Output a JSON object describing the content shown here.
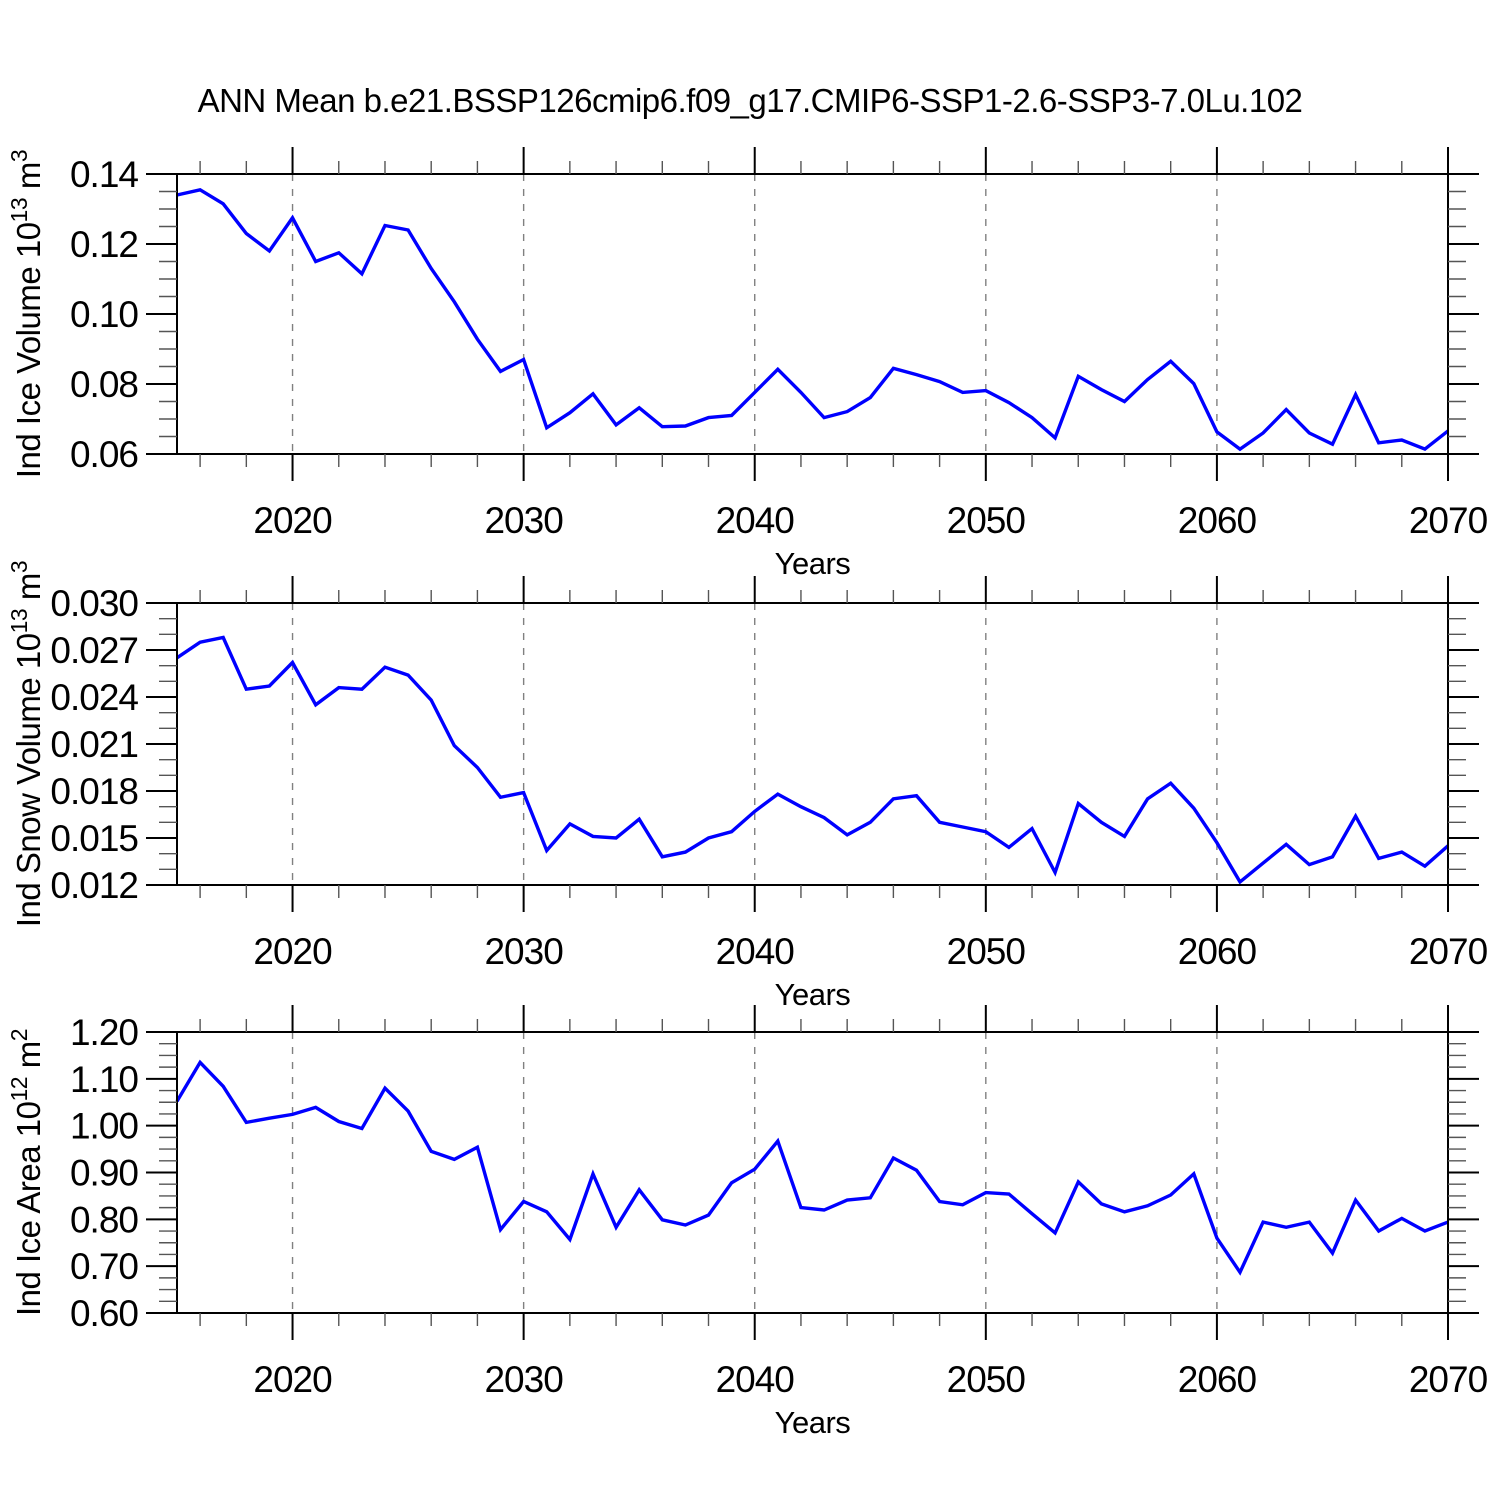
{
  "title": "ANN Mean b.e21.BSSP126cmip6.f09_g17.CMIP6-SSP1-2.6-SSP3-7.0Lu.102",
  "colors": {
    "line": "#0000ff",
    "grid": "#808080",
    "axis": "#000000",
    "background": "#ffffff"
  },
  "x_axis": {
    "label": "Years",
    "min": 2015,
    "max": 2070,
    "major_ticks": [
      2020,
      2030,
      2040,
      2050,
      2060,
      2070
    ],
    "tick_labels": [
      "2020",
      "2030",
      "2040",
      "2050",
      "2060",
      "2070"
    ],
    "minor_step": 2,
    "gridlines": [
      2020,
      2030,
      2040,
      2050,
      2060
    ],
    "grid_style": "vertical-dashed"
  },
  "chart_data": [
    {
      "type": "line",
      "name": "ice-volume",
      "ylabel": {
        "text": "Ind Ice Volume",
        "base": "10",
        "exponent": "13",
        "unit": "m",
        "unit_exponent": "3"
      },
      "xlabel": "Years",
      "x": {
        "start": 2015,
        "end": 2070,
        "step": 1
      },
      "ylim": [
        0.06,
        0.14
      ],
      "ytick_values": [
        0.06,
        0.08,
        0.1,
        0.12,
        0.14
      ],
      "ytick_labels": [
        "0.06",
        "0.08",
        "0.10",
        "0.12",
        "0.14"
      ],
      "yminor_step": 0.005,
      "values": [
        0.134,
        0.1355,
        0.1315,
        0.123,
        0.118,
        0.1275,
        0.115,
        0.1175,
        0.1115,
        0.1253,
        0.124,
        0.113,
        0.1035,
        0.0928,
        0.0836,
        0.087,
        0.0675,
        0.0718,
        0.0772,
        0.0683,
        0.0732,
        0.0678,
        0.068,
        0.0704,
        0.071,
        0.0776,
        0.0842,
        0.0776,
        0.0704,
        0.0721,
        0.0761,
        0.0845,
        0.0827,
        0.0807,
        0.0776,
        0.0781,
        0.0747,
        0.0704,
        0.0646,
        0.0822,
        0.0784,
        0.075,
        0.0813,
        0.0865,
        0.0801,
        0.0663,
        0.0614,
        0.066,
        0.0727,
        0.066,
        0.0628,
        0.077,
        0.0632,
        0.064,
        0.0614,
        0.0666
      ]
    },
    {
      "type": "line",
      "name": "snow-volume",
      "ylabel": {
        "text": "Ind Snow Volume",
        "base": "10",
        "exponent": "13",
        "unit": "m",
        "unit_exponent": "3"
      },
      "xlabel": "Years",
      "x": {
        "start": 2015,
        "end": 2070,
        "step": 1
      },
      "ylim": [
        0.012,
        0.03
      ],
      "ytick_values": [
        0.012,
        0.015,
        0.018,
        0.021,
        0.024,
        0.027,
        0.03
      ],
      "ytick_labels": [
        "0.012",
        "0.015",
        "0.018",
        "0.021",
        "0.024",
        "0.027",
        "0.030"
      ],
      "yminor_step": 0.001,
      "values": [
        0.0265,
        0.0275,
        0.0278,
        0.0245,
        0.0247,
        0.0262,
        0.0235,
        0.0246,
        0.0245,
        0.0259,
        0.0254,
        0.0238,
        0.0209,
        0.0195,
        0.0176,
        0.0179,
        0.0142,
        0.0159,
        0.0151,
        0.015,
        0.0162,
        0.0138,
        0.0141,
        0.015,
        0.0154,
        0.0167,
        0.0178,
        0.017,
        0.0163,
        0.0152,
        0.016,
        0.0175,
        0.0177,
        0.016,
        0.0157,
        0.0154,
        0.0144,
        0.0156,
        0.0128,
        0.0172,
        0.016,
        0.0151,
        0.0175,
        0.0185,
        0.0169,
        0.0147,
        0.0122,
        0.0134,
        0.0146,
        0.0133,
        0.0138,
        0.0164,
        0.0137,
        0.0141,
        0.0132,
        0.0145
      ]
    },
    {
      "type": "line",
      "name": "ice-area",
      "ylabel": {
        "text": "Ind Ice Area",
        "base": "10",
        "exponent": "12",
        "unit": "m",
        "unit_exponent": "2"
      },
      "xlabel": "Years",
      "x": {
        "start": 2015,
        "end": 2070,
        "step": 1
      },
      "ylim": [
        0.6,
        1.2
      ],
      "ytick_values": [
        0.6,
        0.7,
        0.8,
        0.9,
        1.0,
        1.1,
        1.2
      ],
      "ytick_labels": [
        "0.60",
        "0.70",
        "0.80",
        "0.90",
        "1.00",
        "1.10",
        "1.20"
      ],
      "yminor_step": 0.025,
      "values": [
        1.052,
        1.135,
        1.084,
        1.007,
        1.016,
        1.024,
        1.039,
        1.009,
        0.994,
        1.08,
        1.031,
        0.945,
        0.928,
        0.954,
        0.778,
        0.838,
        0.816,
        0.757,
        0.897,
        0.783,
        0.863,
        0.799,
        0.788,
        0.809,
        0.878,
        0.907,
        0.967,
        0.825,
        0.82,
        0.841,
        0.846,
        0.931,
        0.905,
        0.838,
        0.831,
        0.857,
        0.854,
        0.812,
        0.771,
        0.88,
        0.833,
        0.816,
        0.829,
        0.852,
        0.897,
        0.76,
        0.687,
        0.794,
        0.783,
        0.794,
        0.728,
        0.841,
        0.775,
        0.802,
        0.775,
        0.794
      ]
    }
  ]
}
